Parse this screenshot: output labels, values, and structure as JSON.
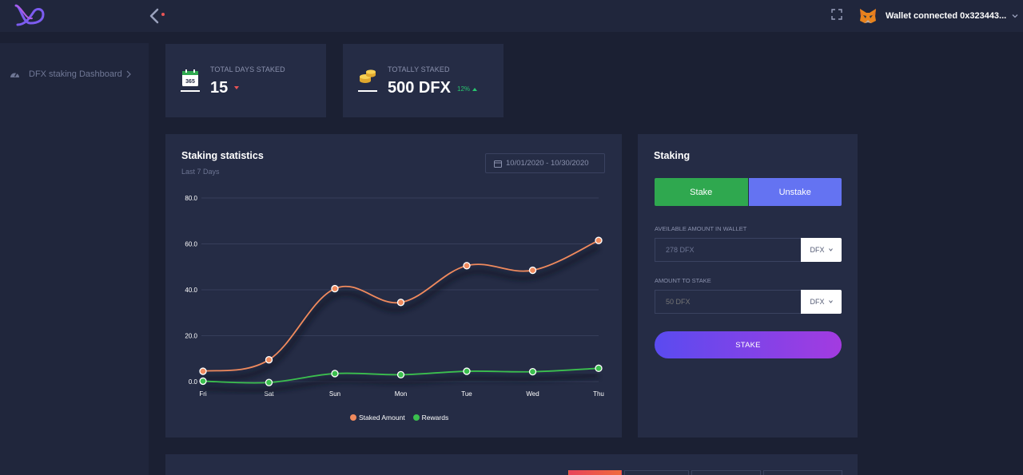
{
  "topbar": {
    "logo_icon": "infinity-logo-icon",
    "back_icon": "chevron-left-icon",
    "fullscreen_icon": "fullscreen-icon",
    "wallet_icon": "metamask-fox-icon",
    "wallet_label": "Wallet connected 0x323443..."
  },
  "sidebar": {
    "items": [
      {
        "label": "DFX staking Dashboard",
        "icon": "dashboard-gauge-icon"
      }
    ]
  },
  "stats": [
    {
      "label": "TOTAL DAYS STAKED",
      "value": "15",
      "icon": "calendar-365-icon",
      "trend": "down",
      "trend_color": "#ea5455"
    },
    {
      "label": "TOTALLY STAKED",
      "value": "500 DFX",
      "icon": "coins-icon",
      "change": "12%",
      "trend": "up",
      "trend_color": "#28c76f"
    }
  ],
  "chart": {
    "title": "Staking statistics",
    "subtitle": "Last 7 Days",
    "date_range": "10/01/2020 - 10/30/2020"
  },
  "chart_data": {
    "type": "line",
    "categories": [
      "Fri",
      "Sat",
      "Sun",
      "Mon",
      "Tue",
      "Wed",
      "Thu"
    ],
    "series": [
      {
        "name": "Staked Amount",
        "color": "#f08a5d",
        "values": [
          4.5,
          9.5,
          40.5,
          34.5,
          50.5,
          48.5,
          61.5
        ]
      },
      {
        "name": "Rewards",
        "color": "#3bbf4e",
        "values": [
          0.2,
          -0.4,
          3.5,
          3.0,
          4.5,
          4.3,
          5.8
        ]
      }
    ],
    "y_ticks": [
      "0.0",
      "20.0",
      "40.0",
      "60.0",
      "80.0"
    ],
    "ylim": [
      0,
      80
    ],
    "grid": true,
    "legend": "bottom-center"
  },
  "staking": {
    "title": "Staking",
    "stake_tab": "Stake",
    "unstake_tab": "Unstake",
    "available_label": "AVEILABLE AMOUNT IN WALLET",
    "available_value": "278 DFX",
    "available_unit": "DFX",
    "amount_label": "AMOUNT TO STAKE",
    "amount_placeholder": "50 DFX",
    "amount_unit": "DFX",
    "submit_label": "STAKE",
    "stake_color": "#2fa84f",
    "unstake_color": "#6473f2"
  }
}
